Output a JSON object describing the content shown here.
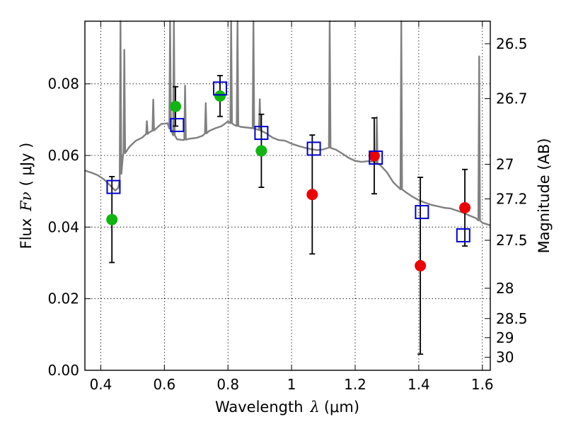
{
  "chart_data": {
    "type": "scatter",
    "xlabel_text": "Wavelength",
    "xlabel_symbol": "λ",
    "xlabel_unit": "(μm)",
    "ylabel_text": "Flux",
    "ylabel_symbol": "Fν",
    "ylabel_unit": "( μJy )",
    "y2label": "Magnitude (AB)",
    "xlim": [
      0.35,
      1.625
    ],
    "ylim": [
      0.0,
      0.0975
    ],
    "grid": true,
    "x_ticks": [
      "0.4",
      "0.6",
      "0.8",
      "1",
      "1.2",
      "1.4",
      "1.6"
    ],
    "y_ticks": [
      "0.00",
      "0.02",
      "0.04",
      "0.06",
      "0.08"
    ],
    "y2_ticks": [
      {
        "label": "26.5",
        "mag": 26.5
      },
      {
        "label": "26.7",
        "mag": 26.7
      },
      {
        "label": "27",
        "mag": 27.0
      },
      {
        "label": "27.2",
        "mag": 27.2
      },
      {
        "label": "27.5",
        "mag": 27.5
      },
      {
        "label": "28",
        "mag": 28.0
      },
      {
        "label": "28.5",
        "mag": 28.5
      },
      {
        "label": "29",
        "mag": 29.0
      },
      {
        "label": "30",
        "mag": 30.0
      }
    ],
    "colors": {
      "model": "#808080",
      "observed_green": "#11b511",
      "observed_red": "#ee0000",
      "model_photometry": "#0000cc",
      "errorbar": "#000000"
    },
    "observed": [
      {
        "x": 0.435,
        "y": 0.0421,
        "err_lo": 0.012,
        "err_hi": 0.012,
        "color": "green"
      },
      {
        "x": 0.635,
        "y": 0.0737,
        "err_lo": 0.0055,
        "err_hi": 0.0055,
        "color": "green"
      },
      {
        "x": 0.775,
        "y": 0.0766,
        "err_lo": 0.0057,
        "err_hi": 0.0057,
        "color": "green"
      },
      {
        "x": 0.905,
        "y": 0.0613,
        "err_lo": 0.0102,
        "err_hi": 0.0102,
        "color": "green"
      },
      {
        "x": 1.065,
        "y": 0.0491,
        "err_lo": 0.0166,
        "err_hi": 0.0166,
        "color": "red"
      },
      {
        "x": 1.26,
        "y": 0.0599,
        "err_lo": 0.0106,
        "err_hi": 0.0106,
        "color": "red"
      },
      {
        "x": 1.405,
        "y": 0.0292,
        "err_lo": 0.0247,
        "err_hi": 0.0247,
        "color": "red"
      },
      {
        "x": 1.545,
        "y": 0.0454,
        "err_lo": 0.0107,
        "err_hi": 0.0107,
        "color": "red"
      }
    ],
    "model_photometry": [
      {
        "x": 0.44,
        "y": 0.0512
      },
      {
        "x": 0.64,
        "y": 0.0685
      },
      {
        "x": 0.775,
        "y": 0.0787
      },
      {
        "x": 0.905,
        "y": 0.0663
      },
      {
        "x": 1.07,
        "y": 0.0619
      },
      {
        "x": 1.265,
        "y": 0.0594
      },
      {
        "x": 1.41,
        "y": 0.0442
      },
      {
        "x": 1.54,
        "y": 0.0377
      }
    ],
    "model_spectrum": [
      [
        0.35,
        0.0558
      ],
      [
        0.37,
        0.0552
      ],
      [
        0.39,
        0.0545
      ],
      [
        0.41,
        0.0533
      ],
      [
        0.43,
        0.0516
      ],
      [
        0.445,
        0.0502
      ],
      [
        0.455,
        0.051
      ],
      [
        0.46,
        0.0535
      ],
      [
        0.47,
        0.0602
      ],
      [
        0.49,
        0.0624
      ],
      [
        0.51,
        0.0641
      ],
      [
        0.53,
        0.065
      ],
      [
        0.55,
        0.0663
      ],
      [
        0.57,
        0.0672
      ],
      [
        0.59,
        0.0688
      ],
      [
        0.61,
        0.069
      ],
      [
        0.625,
        0.0662
      ],
      [
        0.64,
        0.0645
      ],
      [
        0.66,
        0.0643
      ],
      [
        0.68,
        0.0647
      ],
      [
        0.7,
        0.0649
      ],
      [
        0.72,
        0.0655
      ],
      [
        0.74,
        0.0668
      ],
      [
        0.76,
        0.0676
      ],
      [
        0.78,
        0.0682
      ],
      [
        0.8,
        0.0695
      ],
      [
        0.82,
        0.0685
      ],
      [
        0.84,
        0.068
      ],
      [
        0.86,
        0.0678
      ],
      [
        0.88,
        0.0676
      ],
      [
        0.9,
        0.0671
      ],
      [
        0.92,
        0.0662
      ],
      [
        0.94,
        0.065
      ],
      [
        0.96,
        0.0643
      ],
      [
        0.98,
        0.0641
      ],
      [
        1.0,
        0.0633
      ],
      [
        1.02,
        0.0627
      ],
      [
        1.04,
        0.0622
      ],
      [
        1.06,
        0.0618
      ],
      [
        1.08,
        0.0615
      ],
      [
        1.1,
        0.0617
      ],
      [
        1.12,
        0.0622
      ],
      [
        1.14,
        0.0616
      ],
      [
        1.16,
        0.0605
      ],
      [
        1.18,
        0.0593
      ],
      [
        1.2,
        0.0585
      ],
      [
        1.22,
        0.0582
      ],
      [
        1.24,
        0.0584
      ],
      [
        1.26,
        0.0582
      ],
      [
        1.28,
        0.0572
      ],
      [
        1.3,
        0.0553
      ],
      [
        1.32,
        0.0525
      ],
      [
        1.34,
        0.0508
      ],
      [
        1.36,
        0.0497
      ],
      [
        1.38,
        0.0485
      ],
      [
        1.4,
        0.0475
      ],
      [
        1.42,
        0.0468
      ],
      [
        1.44,
        0.0462
      ],
      [
        1.46,
        0.0458
      ],
      [
        1.48,
        0.0454
      ],
      [
        1.5,
        0.0452
      ],
      [
        1.52,
        0.0446
      ],
      [
        1.54,
        0.044
      ],
      [
        1.56,
        0.0432
      ],
      [
        1.58,
        0.0425
      ],
      [
        1.6,
        0.0412
      ],
      [
        1.625,
        0.0405
      ]
    ],
    "emission_lines": [
      {
        "x": 0.462,
        "peak": 0.105
      },
      {
        "x": 0.474,
        "peak": 0.0895
      },
      {
        "x": 0.545,
        "peak": 0.0696
      },
      {
        "x": 0.565,
        "peak": 0.0756
      },
      {
        "x": 0.618,
        "peak": 0.105
      },
      {
        "x": 0.63,
        "peak": 0.105
      },
      {
        "x": 0.665,
        "peak": 0.0795
      },
      {
        "x": 0.73,
        "peak": 0.0746
      },
      {
        "x": 0.81,
        "peak": 0.105
      },
      {
        "x": 0.83,
        "peak": 0.105
      },
      {
        "x": 0.88,
        "peak": 0.105
      },
      {
        "x": 0.9,
        "peak": 0.0757
      },
      {
        "x": 1.12,
        "peak": 0.105
      },
      {
        "x": 1.268,
        "peak": 0.0707
      },
      {
        "x": 1.345,
        "peak": 0.105
      },
      {
        "x": 1.59,
        "peak": 0.0877
      }
    ]
  }
}
